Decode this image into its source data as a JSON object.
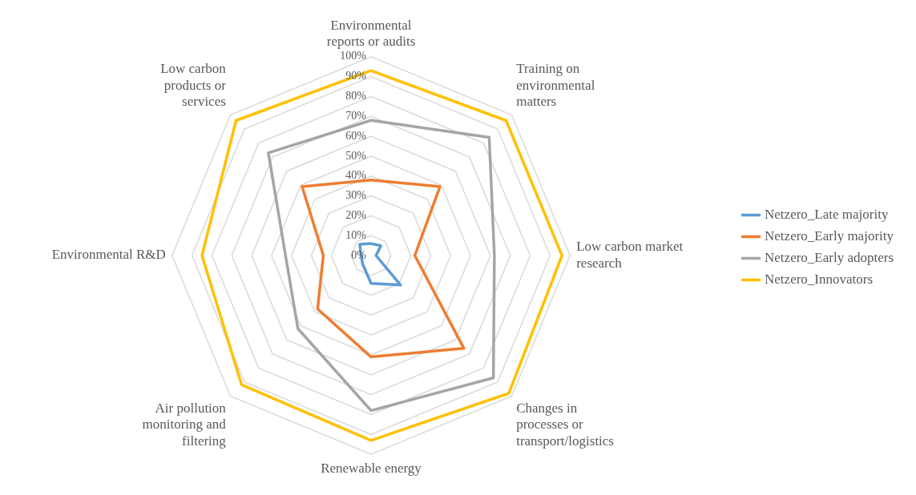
{
  "chart_data": {
    "type": "radar",
    "categories": [
      "Environmental reports or audits",
      "Training on environmental matters",
      "Low carbon market research",
      "Changes in processes or transport/logistics",
      "Renewable energy",
      "Air pollution monitoring and filtering",
      "Environmental R&D",
      "Low carbon products or services"
    ],
    "series": [
      {
        "name": "Netzero_Late majority",
        "color": "#5b9bd5",
        "values": [
          6,
          7,
          2.5,
          21,
          14,
          6,
          5,
          8
        ]
      },
      {
        "name": "Netzero_Early majority",
        "color": "#ed7d31",
        "values": [
          38,
          49,
          22,
          66,
          51,
          38,
          24,
          49
        ]
      },
      {
        "name": "Netzero_Early adopters",
        "color": "#a5a5a5",
        "values": [
          68,
          84,
          62,
          87,
          78,
          52,
          43,
          73
        ]
      },
      {
        "name": "Netzero_Innovators",
        "color": "#ffc000",
        "values": [
          93,
          96,
          96,
          98,
          93,
          92,
          85,
          96
        ]
      }
    ],
    "ylim": [
      0,
      100
    ],
    "yticks": [
      {
        "value": 0,
        "label": "0%"
      },
      {
        "value": 10,
        "label": "10%"
      },
      {
        "value": 20,
        "label": "20%"
      },
      {
        "value": 30,
        "label": "30%"
      },
      {
        "value": 40,
        "label": "40%"
      },
      {
        "value": 50,
        "label": "50%"
      },
      {
        "value": 60,
        "label": "60%"
      },
      {
        "value": 70,
        "label": "70%"
      },
      {
        "value": 80,
        "label": "80%"
      },
      {
        "value": 90,
        "label": "90%"
      },
      {
        "value": 100,
        "label": "100%"
      }
    ],
    "grid": true,
    "legend": "right",
    "marker": "none",
    "line_style": "solid"
  }
}
